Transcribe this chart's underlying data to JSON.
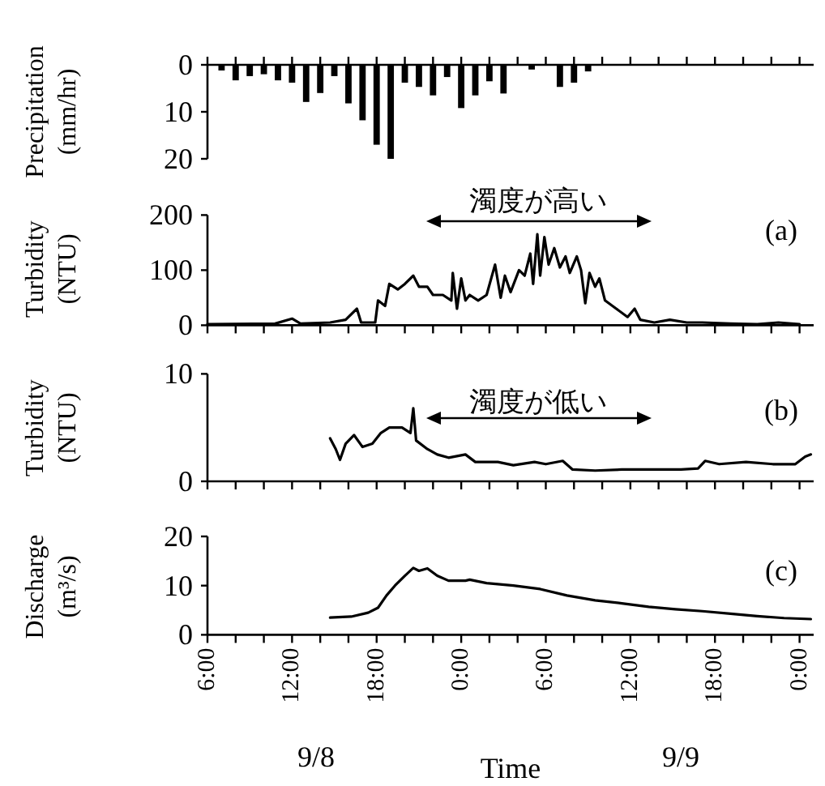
{
  "chart_data": [
    {
      "type": "bar",
      "ylabel": "Precipitation (mm/hr)",
      "color": "#000000",
      "tick_labels": "y",
      "xlim": [
        "--09-08T06:00",
        "--09-10T01:00"
      ],
      "ylim": [
        20,
        0
      ],
      "yticks": [
        0,
        10,
        20
      ],
      "x": [
        "--09-08T07:00",
        "--09-08T08:00",
        "--09-08T09:00",
        "--09-08T10:00",
        "--09-08T11:00",
        "--09-08T12:00",
        "--09-08T13:00",
        "--09-08T14:00",
        "--09-08T15:00",
        "--09-08T16:00",
        "--09-08T17:00",
        "--09-08T18:00",
        "--09-08T19:00",
        "--09-08T20:00",
        "--09-08T21:00",
        "--09-08T22:00",
        "--09-08T23:00",
        "--09-09T00:00",
        "--09-09T01:00",
        "--09-09T02:00",
        "--09-09T03:00",
        "--09-09T04:00",
        "--09-09T05:00",
        "--09-09T06:00",
        "--09-09T07:00",
        "--09-09T08:00",
        "--09-09T09:00"
      ],
      "values": [
        1.2,
        3.3,
        2.4,
        2,
        3.3,
        3.8,
        7.9,
        6,
        2.4,
        8.2,
        11.8,
        17,
        20,
        3.8,
        4.7,
        6.5,
        2.6,
        9.2,
        6.5,
        3.5,
        6.1,
        0,
        1,
        0,
        4.7,
        3.8,
        1.4
      ],
      "xticks": [
        {
          "value": "--09-08T06:00",
          "label": null
        },
        {
          "value": "--09-08T08:00",
          "label": null
        },
        {
          "value": "--09-08T10:00",
          "label": null
        },
        {
          "value": "--09-08T12:00",
          "label": null
        },
        {
          "value": "--09-08T14:00",
          "label": null
        },
        {
          "value": "--09-08T16:00",
          "label": null
        },
        {
          "value": "--09-08T18:00",
          "label": null
        },
        {
          "value": "--09-08T20:00",
          "label": null
        },
        {
          "value": "--09-08T22:00",
          "label": null
        },
        {
          "value": "--09-09T00:00",
          "label": null
        },
        {
          "value": "--09-09T02:00",
          "label": null
        },
        {
          "value": "--09-09T04:00",
          "label": null
        },
        {
          "value": "--09-09T06:00",
          "label": null
        },
        {
          "value": "--09-09T08:00",
          "label": null
        },
        {
          "value": "--09-09T10:00",
          "label": null
        },
        {
          "value": "--09-09T12:00",
          "label": null
        },
        {
          "value": "--09-09T14:00",
          "label": null
        },
        {
          "value": "--09-09T16:00",
          "label": null
        },
        {
          "value": "--09-09T18:00",
          "label": null
        },
        {
          "value": "--09-09T20:00",
          "label": null
        },
        {
          "value": "--09-09T22:00",
          "label": null
        },
        {
          "value": "--09-10T00:00",
          "label": null
        }
      ]
    },
    {
      "type": "line",
      "ylabel": "Turbidity (NTU)",
      "color": "#000000",
      "tick_labels": "y",
      "xlim": [
        "--09-08T06:00",
        "--09-10T01:00"
      ],
      "ylim": [
        0,
        200
      ],
      "yticks": [
        0,
        100,
        200
      ],
      "annotations": [
        "濁度が高い",
        "(a)"
      ],
      "x": [
        "--09-08T06:00",
        "--09-08T10:48",
        "--09-08T12:00",
        "--09-08T12:36",
        "--09-08T14:42",
        "--09-08T15:48",
        "--09-08T16:36",
        "--09-08T16:54",
        "--09-08T17:54",
        "--09-08T18:06",
        "--09-08T18:36",
        "--09-08T18:54",
        "--09-08T19:30",
        "--09-08T20:00",
        "--09-08T20:36",
        "--09-08T21:00",
        "--09-08T21:36",
        "--09-08T22:00",
        "--09-08T22:42",
        "--09-08T23:18",
        "--09-08T23:24",
        "--09-08T23:42",
        "--09-09T00:00",
        "--09-09T00:18",
        "--09-09T00:36",
        "--09-09T01:12",
        "--09-09T01:48",
        "--09-09T02:24",
        "--09-09T02:48",
        "--09-09T03:06",
        "--09-09T03:30",
        "--09-09T04:06",
        "--09-09T04:30",
        "--09-09T04:54",
        "--09-09T05:06",
        "--09-09T05:24",
        "--09-09T05:36",
        "--09-09T05:54",
        "--09-09T06:12",
        "--09-09T06:36",
        "--09-09T07:00",
        "--09-09T07:24",
        "--09-09T07:42",
        "--09-09T08:12",
        "--09-09T08:30",
        "--09-09T08:48",
        "--09-09T09:06",
        "--09-09T09:30",
        "--09-09T09:48",
        "--09-09T10:12",
        "--09-09T11:00",
        "--09-09T11:48",
        "--09-09T12:18",
        "--09-09T12:42",
        "--09-09T13:42",
        "--09-09T14:48",
        "--09-09T16:00",
        "--09-09T17:06",
        "--09-09T19:06",
        "--09-09T21:00",
        "--09-09T22:30",
        "--09-10T00:00"
      ],
      "values": [
        2,
        3,
        12,
        3,
        5,
        10,
        30,
        5,
        5,
        45,
        35,
        75,
        65,
        75,
        90,
        70,
        70,
        55,
        55,
        45,
        95,
        30,
        85,
        45,
        55,
        45,
        55,
        110,
        50,
        90,
        60,
        100,
        90,
        130,
        75,
        165,
        90,
        160,
        110,
        140,
        105,
        125,
        95,
        125,
        100,
        40,
        95,
        70,
        85,
        45,
        30,
        15,
        30,
        10,
        5,
        10,
        5,
        5,
        3,
        2,
        5,
        2
      ],
      "xticks": [
        {
          "value": "--09-08T06:00",
          "label": null
        },
        {
          "value": "--09-08T08:00",
          "label": null
        },
        {
          "value": "--09-08T10:00",
          "label": null
        },
        {
          "value": "--09-08T12:00",
          "label": null
        },
        {
          "value": "--09-08T14:00",
          "label": null
        },
        {
          "value": "--09-08T16:00",
          "label": null
        },
        {
          "value": "--09-08T18:00",
          "label": null
        },
        {
          "value": "--09-08T20:00",
          "label": null
        },
        {
          "value": "--09-08T22:00",
          "label": null
        },
        {
          "value": "--09-09T00:00",
          "label": null
        },
        {
          "value": "--09-09T02:00",
          "label": null
        },
        {
          "value": "--09-09T04:00",
          "label": null
        },
        {
          "value": "--09-09T06:00",
          "label": null
        },
        {
          "value": "--09-09T08:00",
          "label": null
        },
        {
          "value": "--09-09T10:00",
          "label": null
        },
        {
          "value": "--09-09T12:00",
          "label": null
        },
        {
          "value": "--09-09T14:00",
          "label": null
        },
        {
          "value": "--09-09T16:00",
          "label": null
        },
        {
          "value": "--09-09T18:00",
          "label": null
        },
        {
          "value": "--09-09T20:00",
          "label": null
        },
        {
          "value": "--09-09T22:00",
          "label": null
        },
        {
          "value": "--09-10T00:00",
          "label": null
        }
      ]
    },
    {
      "type": "line",
      "ylabel": "Turbidity (NTU)",
      "color": "#000000",
      "tick_labels": "y",
      "xlim": [
        "--09-08T06:00",
        "--09-10T01:00"
      ],
      "ylim": [
        0,
        10
      ],
      "yticks": [
        0,
        10
      ],
      "annotations": [
        "濁度が低い",
        "(b)"
      ],
      "x": [
        "--09-08T14:42",
        "--09-08T15:06",
        "--09-08T15:24",
        "--09-08T15:48",
        "--09-08T16:24",
        "--09-08T17:00",
        "--09-08T17:42",
        "--09-08T18:18",
        "--09-08T18:54",
        "--09-08T19:48",
        "--09-08T20:24",
        "--09-08T20:36",
        "--09-08T20:48",
        "--09-08T21:36",
        "--09-08T22:18",
        "--09-08T23:06",
        "--09-09T00:18",
        "--09-09T01:00",
        "--09-09T02:36",
        "--09-09T03:42",
        "--09-09T05:12",
        "--09-09T06:00",
        "--09-09T07:12",
        "--09-09T07:54",
        "--09-09T09:30",
        "--09-09T11:24",
        "--09-09T13:18",
        "--09-09T15:36",
        "--09-09T16:48",
        "--09-09T17:18",
        "--09-09T18:18",
        "--09-09T20:12",
        "--09-09T22:06",
        "--09-09T23:42",
        "--09-10T00:24",
        "--09-10T00:48"
      ],
      "values": [
        4,
        3,
        2,
        3.5,
        4.3,
        3.2,
        3.5,
        4.5,
        5,
        5,
        4.5,
        6.8,
        3.8,
        3,
        2.5,
        2.2,
        2.5,
        1.8,
        1.8,
        1.5,
        1.8,
        1.6,
        1.9,
        1.1,
        1,
        1.1,
        1.1,
        1.1,
        1.2,
        1.9,
        1.6,
        1.8,
        1.6,
        1.6,
        2.3,
        2.5
      ],
      "xticks": [
        {
          "value": "--09-08T06:00",
          "label": null
        },
        {
          "value": "--09-08T08:00",
          "label": null
        },
        {
          "value": "--09-08T10:00",
          "label": null
        },
        {
          "value": "--09-08T12:00",
          "label": null
        },
        {
          "value": "--09-08T14:00",
          "label": null
        },
        {
          "value": "--09-08T16:00",
          "label": null
        },
        {
          "value": "--09-08T18:00",
          "label": null
        },
        {
          "value": "--09-08T20:00",
          "label": null
        },
        {
          "value": "--09-08T22:00",
          "label": null
        },
        {
          "value": "--09-09T00:00",
          "label": null
        },
        {
          "value": "--09-09T02:00",
          "label": null
        },
        {
          "value": "--09-09T04:00",
          "label": null
        },
        {
          "value": "--09-09T06:00",
          "label": null
        },
        {
          "value": "--09-09T08:00",
          "label": null
        },
        {
          "value": "--09-09T10:00",
          "label": null
        },
        {
          "value": "--09-09T12:00",
          "label": null
        },
        {
          "value": "--09-09T14:00",
          "label": null
        },
        {
          "value": "--09-09T16:00",
          "label": null
        },
        {
          "value": "--09-09T18:00",
          "label": null
        },
        {
          "value": "--09-09T20:00",
          "label": null
        },
        {
          "value": "--09-09T22:00",
          "label": null
        },
        {
          "value": "--09-10T00:00",
          "label": null
        }
      ]
    },
    {
      "type": "line",
      "ylabel": "Discharge (m³/s)",
      "xlabel": "Time",
      "color": "#000000",
      "xlim": [
        "--09-08T06:00",
        "--09-10T01:00"
      ],
      "ylim": [
        0,
        20
      ],
      "yticks": [
        0,
        10,
        20
      ],
      "annotations": [
        "(c)",
        "9/8",
        "9/9"
      ],
      "x": [
        "--09-08T14:42",
        "--09-08T16:12",
        "--09-08T17:24",
        "--09-08T18:06",
        "--09-08T18:42",
        "--09-08T19:18",
        "--09-08T20:00",
        "--09-08T20:36",
        "--09-08T21:00",
        "--09-08T21:36",
        "--09-08T22:18",
        "--09-08T23:06",
        "--09-09T00:18",
        "--09-09T00:36",
        "--09-09T01:48",
        "--09-09T03:42",
        "--09-09T05:36",
        "--09-09T07:30",
        "--09-09T09:30",
        "--09-09T11:24",
        "--09-09T13:18",
        "--09-09T15:12",
        "--09-09T17:06",
        "--09-09T19:06",
        "--09-09T21:00",
        "--09-09T22:54",
        "--09-10T00:48"
      ],
      "values": [
        3.5,
        3.7,
        4.5,
        5.5,
        8,
        10,
        12,
        13.6,
        13,
        13.5,
        12,
        11,
        11,
        11.2,
        10.5,
        10,
        9.3,
        8,
        7,
        6.4,
        5.7,
        5.2,
        4.8,
        4.3,
        3.8,
        3.4,
        3.2
      ],
      "xticks": [
        {
          "value": "--09-08T06:00",
          "label": "6:00"
        },
        {
          "value": "--09-08T08:00",
          "label": null
        },
        {
          "value": "--09-08T10:00",
          "label": null
        },
        {
          "value": "--09-08T12:00",
          "label": "12:00"
        },
        {
          "value": "--09-08T14:00",
          "label": null
        },
        {
          "value": "--09-08T16:00",
          "label": null
        },
        {
          "value": "--09-08T18:00",
          "label": "18:00"
        },
        {
          "value": "--09-08T20:00",
          "label": null
        },
        {
          "value": "--09-08T22:00",
          "label": null
        },
        {
          "value": "--09-09T00:00",
          "label": "0:00"
        },
        {
          "value": "--09-09T02:00",
          "label": null
        },
        {
          "value": "--09-09T04:00",
          "label": null
        },
        {
          "value": "--09-09T06:00",
          "label": "6:00"
        },
        {
          "value": "--09-09T08:00",
          "label": null
        },
        {
          "value": "--09-09T10:00",
          "label": null
        },
        {
          "value": "--09-09T12:00",
          "label": "12:00"
        },
        {
          "value": "--09-09T14:00",
          "label": null
        },
        {
          "value": "--09-09T16:00",
          "label": null
        },
        {
          "value": "--09-09T18:00",
          "label": "18:00"
        },
        {
          "value": "--09-09T20:00",
          "label": null
        },
        {
          "value": "--09-09T22:00",
          "label": null
        },
        {
          "value": "--09-10T00:00",
          "label": "0:00"
        }
      ]
    }
  ]
}
